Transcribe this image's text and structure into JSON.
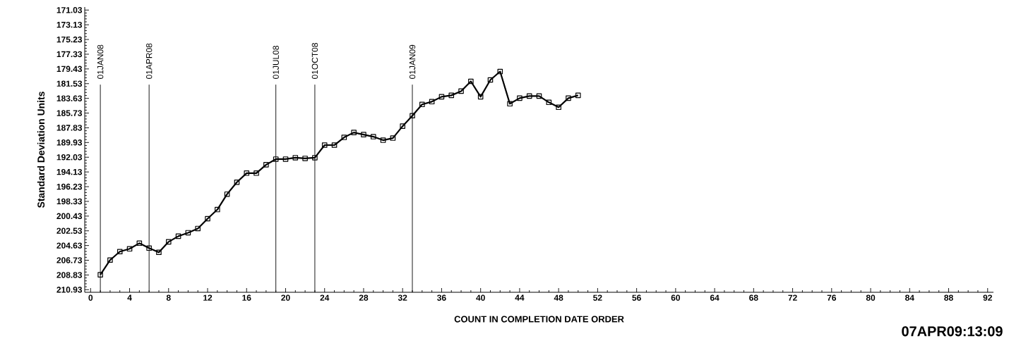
{
  "chart_data": {
    "type": "line",
    "xlabel": "COUNT IN COMPLETION DATE ORDER",
    "ylabel": "Standard Deviation Units",
    "annotations": [
      "07APR09:13:09"
    ],
    "x": [
      1,
      2,
      3,
      4,
      5,
      6,
      7,
      8,
      9,
      10,
      11,
      12,
      13,
      14,
      15,
      16,
      17,
      18,
      19,
      20,
      21,
      22,
      23,
      24,
      25,
      26,
      27,
      28,
      29,
      30,
      31,
      32,
      33,
      34,
      35,
      36,
      37,
      38,
      39,
      40,
      41,
      42,
      43,
      44,
      45,
      46,
      47,
      48,
      49,
      50
    ],
    "series": [
      {
        "color": "#000000",
        "values": [
          208.8,
          206.7,
          205.5,
          205.1,
          204.3,
          205.0,
          205.6,
          204.1,
          203.3,
          202.8,
          202.2,
          200.8,
          199.5,
          197.3,
          195.6,
          194.3,
          194.3,
          193.1,
          192.3,
          192.3,
          192.1,
          192.2,
          192.1,
          190.3,
          190.3,
          189.2,
          188.5,
          188.8,
          189.1,
          189.6,
          189.3,
          187.6,
          186.1,
          184.5,
          184.1,
          183.4,
          183.2,
          182.6,
          181.2,
          183.4,
          181.0,
          179.8,
          184.4,
          183.6,
          183.3,
          183.3,
          184.2,
          184.9,
          183.6,
          183.2
        ]
      }
    ],
    "xlim": [
      -0.6,
      92.6
    ],
    "xticks": [
      0,
      4,
      8,
      12,
      16,
      20,
      24,
      28,
      32,
      36,
      40,
      44,
      48,
      52,
      56,
      60,
      64,
      68,
      72,
      76,
      80,
      84,
      88,
      92
    ],
    "ylim": [
      211.3,
      170.6
    ],
    "yticks": [
      171.03,
      173.13,
      175.23,
      177.33,
      179.43,
      181.53,
      183.63,
      185.73,
      187.83,
      189.93,
      192.03,
      194.13,
      196.23,
      198.33,
      200.43,
      202.53,
      204.63,
      206.73,
      208.83,
      210.93
    ],
    "ref_lines": [
      {
        "axis": "x",
        "value": 1,
        "label": "01JAN08"
      },
      {
        "axis": "x",
        "value": 6,
        "label": "01APR08"
      },
      {
        "axis": "x",
        "value": 19,
        "label": "01JUL08"
      },
      {
        "axis": "x",
        "value": 23,
        "label": "01OCT08"
      },
      {
        "axis": "x",
        "value": 33,
        "label": "01JAN09"
      }
    ],
    "grid": false,
    "marker": "square",
    "line_style": "solid"
  }
}
